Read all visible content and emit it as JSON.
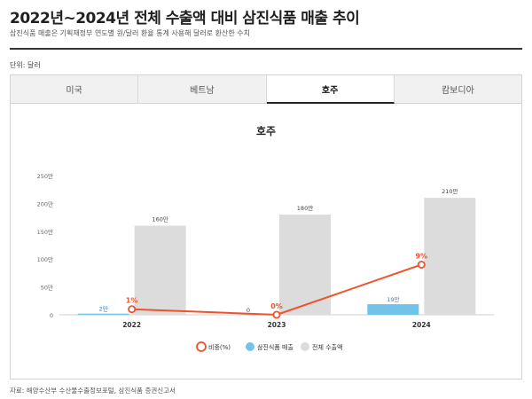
{
  "header": {
    "title": "2022년~2024년 전체 수출액 대비 삼진식품 매출 추이",
    "subtitle": "삼진식품 매출은 기획재정부 연도별 원/달러 환율 통계 사용해 달러로 환산한 수치",
    "unit": "단위: 달러"
  },
  "tabs": [
    {
      "label": "미국",
      "active": false
    },
    {
      "label": "베트남",
      "active": false
    },
    {
      "label": "호주",
      "active": true
    },
    {
      "label": "캄보디아",
      "active": false
    }
  ],
  "colors": {
    "total": "#dcdcdc",
    "sales": "#72c3ea",
    "ratio": "#f0522a",
    "ratio_label": "#e8552e",
    "sales_label": "#3a7bb8"
  },
  "chart_data": {
    "type": "bar",
    "title": "호주",
    "categories": [
      "2022",
      "2023",
      "2024"
    ],
    "ylim": [
      0,
      250
    ],
    "yticks": [
      "0",
      "50만",
      "100만",
      "150만",
      "200만",
      "250만"
    ],
    "series": [
      {
        "name": "삼진식품 매출",
        "values": [
          2,
          0,
          19
        ],
        "labels": [
          "2만",
          "0",
          "19만"
        ]
      },
      {
        "name": "전체 수출액",
        "values": [
          160,
          180,
          210
        ],
        "labels": [
          "160만",
          "180만",
          "210만"
        ]
      }
    ],
    "line": {
      "name": "비중(%)",
      "values": [
        1,
        0,
        9
      ],
      "labels": [
        "1%",
        "0%",
        "9%"
      ]
    },
    "legend": [
      "비중(%)",
      "삼진식품 매출",
      "전체 수출액"
    ],
    "legend_position": "bottom",
    "grid": false
  },
  "footer": {
    "source": "자료: 해양수산부 수산물수출정보포털, 삼진식품 증권신고서"
  }
}
